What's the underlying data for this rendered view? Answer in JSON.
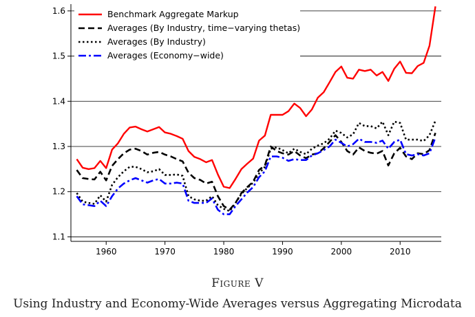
{
  "figure_label": "Figure V",
  "caption": "Using Industry and Economy-Wide Averages versus Aggregating Microdata",
  "chart_data": {
    "type": "line",
    "title": "",
    "xlabel": "",
    "ylabel": "",
    "xlim": [
      1954,
      2017
    ],
    "ylim": [
      1.09,
      1.615
    ],
    "x_ticks": [
      1960,
      1970,
      1980,
      1990,
      2000,
      2010
    ],
    "y_ticks": [
      1.1,
      1.2,
      1.3,
      1.4,
      1.5,
      1.6
    ],
    "grid": "horizontal",
    "legend_position": "top-left",
    "x": [
      1955,
      1956,
      1957,
      1958,
      1959,
      1960,
      1961,
      1962,
      1963,
      1964,
      1965,
      1966,
      1967,
      1968,
      1969,
      1970,
      1971,
      1972,
      1973,
      1974,
      1975,
      1976,
      1977,
      1978,
      1979,
      1980,
      1981,
      1982,
      1983,
      1984,
      1985,
      1986,
      1987,
      1988,
      1989,
      1990,
      1991,
      1992,
      1993,
      1994,
      1995,
      1996,
      1997,
      1998,
      1999,
      2000,
      2001,
      2002,
      2003,
      2004,
      2005,
      2006,
      2007,
      2008,
      2009,
      2010,
      2011,
      2012,
      2013,
      2014,
      2015,
      2016
    ],
    "series": [
      {
        "name": "Benchmark Aggregate Markup",
        "style": "solid",
        "color": "#ff0000",
        "values": [
          1.272,
          1.253,
          1.25,
          1.252,
          1.268,
          1.252,
          1.293,
          1.307,
          1.328,
          1.342,
          1.344,
          1.338,
          1.333,
          1.338,
          1.343,
          1.331,
          1.328,
          1.323,
          1.317,
          1.29,
          1.277,
          1.272,
          1.265,
          1.27,
          1.238,
          1.211,
          1.208,
          1.228,
          1.25,
          1.262,
          1.273,
          1.313,
          1.324,
          1.37,
          1.37,
          1.37,
          1.378,
          1.395,
          1.385,
          1.367,
          1.382,
          1.408,
          1.42,
          1.442,
          1.465,
          1.477,
          1.452,
          1.45,
          1.47,
          1.467,
          1.47,
          1.457,
          1.465,
          1.445,
          1.472,
          1.488,
          1.463,
          1.462,
          1.478,
          1.485,
          1.523,
          1.61
        ]
      },
      {
        "name": "Averages (By Industry, time−varying thetas)",
        "style": "dashed",
        "color": "#000000",
        "values": [
          1.248,
          1.23,
          1.228,
          1.227,
          1.244,
          1.225,
          1.257,
          1.272,
          1.285,
          1.293,
          1.295,
          1.29,
          1.282,
          1.286,
          1.288,
          1.282,
          1.278,
          1.272,
          1.267,
          1.242,
          1.23,
          1.226,
          1.218,
          1.222,
          1.19,
          1.168,
          1.16,
          1.175,
          1.197,
          1.21,
          1.222,
          1.248,
          1.258,
          1.3,
          1.29,
          1.285,
          1.282,
          1.29,
          1.28,
          1.274,
          1.282,
          1.285,
          1.296,
          1.31,
          1.325,
          1.31,
          1.29,
          1.282,
          1.298,
          1.29,
          1.286,
          1.284,
          1.29,
          1.258,
          1.285,
          1.297,
          1.278,
          1.272,
          1.285,
          1.283,
          1.292,
          1.33
        ]
      },
      {
        "name": "Averages (By Industry)",
        "style": "dotted",
        "color": "#000000",
        "values": [
          1.197,
          1.178,
          1.175,
          1.173,
          1.192,
          1.178,
          1.215,
          1.232,
          1.245,
          1.255,
          1.255,
          1.25,
          1.243,
          1.245,
          1.25,
          1.237,
          1.237,
          1.238,
          1.235,
          1.19,
          1.183,
          1.18,
          1.18,
          1.19,
          1.17,
          1.162,
          1.157,
          1.175,
          1.195,
          1.208,
          1.22,
          1.24,
          1.255,
          1.295,
          1.298,
          1.292,
          1.285,
          1.295,
          1.288,
          1.283,
          1.295,
          1.302,
          1.307,
          1.317,
          1.335,
          1.33,
          1.32,
          1.327,
          1.352,
          1.345,
          1.345,
          1.34,
          1.355,
          1.325,
          1.355,
          1.352,
          1.315,
          1.315,
          1.315,
          1.312,
          1.325,
          1.357
        ]
      },
      {
        "name": "Averages (Economy−wide)",
        "style": "dashdot",
        "color": "#0000ff",
        "values": [
          1.19,
          1.172,
          1.17,
          1.168,
          1.18,
          1.168,
          1.19,
          1.207,
          1.218,
          1.225,
          1.23,
          1.225,
          1.22,
          1.225,
          1.228,
          1.218,
          1.218,
          1.22,
          1.218,
          1.18,
          1.175,
          1.175,
          1.175,
          1.185,
          1.16,
          1.15,
          1.15,
          1.168,
          1.183,
          1.198,
          1.21,
          1.232,
          1.245,
          1.278,
          1.278,
          1.275,
          1.268,
          1.272,
          1.27,
          1.27,
          1.28,
          1.285,
          1.292,
          1.3,
          1.315,
          1.308,
          1.3,
          1.305,
          1.317,
          1.31,
          1.31,
          1.308,
          1.313,
          1.295,
          1.31,
          1.315,
          1.283,
          1.28,
          1.283,
          1.28,
          1.285,
          1.32
        ]
      }
    ]
  }
}
